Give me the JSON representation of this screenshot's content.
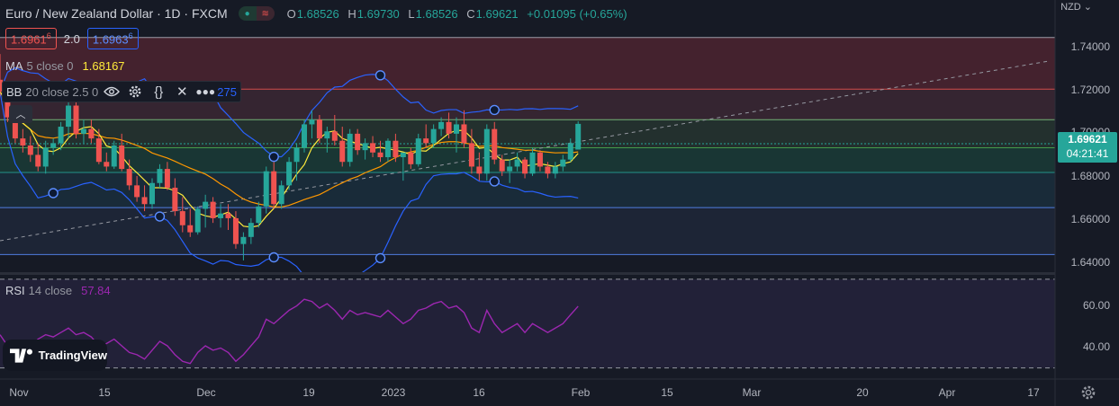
{
  "header": {
    "title": "Euro / New Zealand Dollar · 1D · FXCM",
    "ohlc": [
      {
        "k": "O",
        "v": "1.68526"
      },
      {
        "k": "H",
        "v": "1.69730"
      },
      {
        "k": "L",
        "v": "1.68526"
      },
      {
        "k": "C",
        "v": "1.69621"
      }
    ],
    "change": "+0.01095 (+0.65%)"
  },
  "quote": {
    "bid_main": "1.6961",
    "bid_sup": "6",
    "spread": "2.0",
    "ask_main": "1.6963",
    "ask_sup": "6"
  },
  "ma": {
    "name": "MA",
    "params": "5 close 0",
    "value": "1.68167",
    "color": "#ffeb3b"
  },
  "bb": {
    "name": "BB",
    "params": "20 close 2.5 0",
    "value_tail": "275"
  },
  "rsi": {
    "name": "RSI",
    "params": "14 close",
    "value": "57.84"
  },
  "price_axis": {
    "currency": "NZD",
    "labels": [
      "1.74000",
      "1.72000",
      "1.70000",
      "1.68000",
      "1.66000",
      "1.64000"
    ],
    "last_price": "1.69621",
    "countdown": "04:21:41"
  },
  "rsi_axis": {
    "labels": [
      "60.00",
      "40.00"
    ]
  },
  "time_axis": [
    "Nov",
    "15",
    "Dec",
    "19",
    "2023",
    "16",
    "Feb",
    "15",
    "Mar",
    "20",
    "Apr",
    "17"
  ],
  "branding": "TradingView",
  "colors": {
    "up": "#26a69a",
    "down": "#ef5350",
    "ma": "#ffeb3b",
    "bb": "#2962ff",
    "ema": "#ff9800",
    "rsi": "#9c27b0"
  },
  "chart_data": {
    "type": "candlestick",
    "symbol": "EURNZD",
    "interval": "1D",
    "ylim": [
      1.633,
      1.749
    ],
    "fib_levels": [
      1.733,
      1.711,
      1.698,
      1.686,
      1.6755,
      1.6605,
      1.6405
    ],
    "candles": [
      {
        "o": 1.715,
        "h": 1.726,
        "l": 1.708,
        "c": 1.71
      },
      {
        "o": 1.71,
        "h": 1.714,
        "l": 1.697,
        "c": 1.699
      },
      {
        "o": 1.699,
        "h": 1.703,
        "l": 1.688,
        "c": 1.69
      },
      {
        "o": 1.69,
        "h": 1.694,
        "l": 1.684,
        "c": 1.687
      },
      {
        "o": 1.687,
        "h": 1.691,
        "l": 1.68,
        "c": 1.683
      },
      {
        "o": 1.683,
        "h": 1.688,
        "l": 1.676,
        "c": 1.678
      },
      {
        "o": 1.678,
        "h": 1.689,
        "l": 1.675,
        "c": 1.686
      },
      {
        "o": 1.686,
        "h": 1.69,
        "l": 1.683,
        "c": 1.688
      },
      {
        "o": 1.688,
        "h": 1.697,
        "l": 1.685,
        "c": 1.695
      },
      {
        "o": 1.695,
        "h": 1.706,
        "l": 1.69,
        "c": 1.704
      },
      {
        "o": 1.704,
        "h": 1.708,
        "l": 1.69,
        "c": 1.692
      },
      {
        "o": 1.692,
        "h": 1.698,
        "l": 1.688,
        "c": 1.694
      },
      {
        "o": 1.694,
        "h": 1.698,
        "l": 1.688,
        "c": 1.69
      },
      {
        "o": 1.69,
        "h": 1.694,
        "l": 1.679,
        "c": 1.68
      },
      {
        "o": 1.68,
        "h": 1.684,
        "l": 1.676,
        "c": 1.678
      },
      {
        "o": 1.678,
        "h": 1.689,
        "l": 1.677,
        "c": 1.687
      },
      {
        "o": 1.687,
        "h": 1.692,
        "l": 1.676,
        "c": 1.677
      },
      {
        "o": 1.677,
        "h": 1.681,
        "l": 1.668,
        "c": 1.67
      },
      {
        "o": 1.67,
        "h": 1.674,
        "l": 1.663,
        "c": 1.665
      },
      {
        "o": 1.665,
        "h": 1.67,
        "l": 1.659,
        "c": 1.662
      },
      {
        "o": 1.662,
        "h": 1.673,
        "l": 1.66,
        "c": 1.671
      },
      {
        "o": 1.671,
        "h": 1.679,
        "l": 1.669,
        "c": 1.677
      },
      {
        "o": 1.677,
        "h": 1.68,
        "l": 1.668,
        "c": 1.669
      },
      {
        "o": 1.669,
        "h": 1.673,
        "l": 1.657,
        "c": 1.659
      },
      {
        "o": 1.659,
        "h": 1.665,
        "l": 1.65,
        "c": 1.653
      },
      {
        "o": 1.653,
        "h": 1.66,
        "l": 1.648,
        "c": 1.65
      },
      {
        "o": 1.65,
        "h": 1.661,
        "l": 1.649,
        "c": 1.66
      },
      {
        "o": 1.66,
        "h": 1.666,
        "l": 1.652,
        "c": 1.663
      },
      {
        "o": 1.663,
        "h": 1.665,
        "l": 1.654,
        "c": 1.656
      },
      {
        "o": 1.656,
        "h": 1.662,
        "l": 1.652,
        "c": 1.658
      },
      {
        "o": 1.658,
        "h": 1.662,
        "l": 1.651,
        "c": 1.656
      },
      {
        "o": 1.656,
        "h": 1.659,
        "l": 1.643,
        "c": 1.645
      },
      {
        "o": 1.645,
        "h": 1.65,
        "l": 1.638,
        "c": 1.648
      },
      {
        "o": 1.648,
        "h": 1.656,
        "l": 1.645,
        "c": 1.654
      },
      {
        "o": 1.654,
        "h": 1.663,
        "l": 1.652,
        "c": 1.661
      },
      {
        "o": 1.661,
        "h": 1.678,
        "l": 1.658,
        "c": 1.676
      },
      {
        "o": 1.676,
        "h": 1.68,
        "l": 1.66,
        "c": 1.662
      },
      {
        "o": 1.662,
        "h": 1.672,
        "l": 1.66,
        "c": 1.67
      },
      {
        "o": 1.67,
        "h": 1.682,
        "l": 1.668,
        "c": 1.68
      },
      {
        "o": 1.68,
        "h": 1.688,
        "l": 1.672,
        "c": 1.686
      },
      {
        "o": 1.686,
        "h": 1.698,
        "l": 1.684,
        "c": 1.696
      },
      {
        "o": 1.696,
        "h": 1.702,
        "l": 1.69,
        "c": 1.698
      },
      {
        "o": 1.698,
        "h": 1.7,
        "l": 1.688,
        "c": 1.69
      },
      {
        "o": 1.69,
        "h": 1.695,
        "l": 1.684,
        "c": 1.693
      },
      {
        "o": 1.693,
        "h": 1.7,
        "l": 1.687,
        "c": 1.689
      },
      {
        "o": 1.689,
        "h": 1.695,
        "l": 1.678,
        "c": 1.68
      },
      {
        "o": 1.68,
        "h": 1.694,
        "l": 1.678,
        "c": 1.692
      },
      {
        "o": 1.692,
        "h": 1.694,
        "l": 1.683,
        "c": 1.685
      },
      {
        "o": 1.685,
        "h": 1.69,
        "l": 1.681,
        "c": 1.688
      },
      {
        "o": 1.688,
        "h": 1.691,
        "l": 1.682,
        "c": 1.684
      },
      {
        "o": 1.684,
        "h": 1.689,
        "l": 1.68,
        "c": 1.682
      },
      {
        "o": 1.682,
        "h": 1.69,
        "l": 1.68,
        "c": 1.689
      },
      {
        "o": 1.689,
        "h": 1.692,
        "l": 1.68,
        "c": 1.682
      },
      {
        "o": 1.682,
        "h": 1.684,
        "l": 1.672,
        "c": 1.684
      },
      {
        "o": 1.684,
        "h": 1.686,
        "l": 1.677,
        "c": 1.679
      },
      {
        "o": 1.679,
        "h": 1.692,
        "l": 1.678,
        "c": 1.69
      },
      {
        "o": 1.69,
        "h": 1.696,
        "l": 1.686,
        "c": 1.688
      },
      {
        "o": 1.688,
        "h": 1.696,
        "l": 1.686,
        "c": 1.694
      },
      {
        "o": 1.694,
        "h": 1.699,
        "l": 1.691,
        "c": 1.697
      },
      {
        "o": 1.697,
        "h": 1.701,
        "l": 1.69,
        "c": 1.692
      },
      {
        "o": 1.692,
        "h": 1.699,
        "l": 1.684,
        "c": 1.696
      },
      {
        "o": 1.696,
        "h": 1.702,
        "l": 1.686,
        "c": 1.688
      },
      {
        "o": 1.688,
        "h": 1.694,
        "l": 1.675,
        "c": 1.678
      },
      {
        "o": 1.678,
        "h": 1.684,
        "l": 1.672,
        "c": 1.675
      },
      {
        "o": 1.675,
        "h": 1.696,
        "l": 1.672,
        "c": 1.694
      },
      {
        "o": 1.694,
        "h": 1.697,
        "l": 1.679,
        "c": 1.681
      },
      {
        "o": 1.681,
        "h": 1.683,
        "l": 1.674,
        "c": 1.676
      },
      {
        "o": 1.676,
        "h": 1.681,
        "l": 1.671,
        "c": 1.678
      },
      {
        "o": 1.678,
        "h": 1.684,
        "l": 1.676,
        "c": 1.681
      },
      {
        "o": 1.681,
        "h": 1.682,
        "l": 1.673,
        "c": 1.675
      },
      {
        "o": 1.675,
        "h": 1.686,
        "l": 1.674,
        "c": 1.684
      },
      {
        "o": 1.684,
        "h": 1.685,
        "l": 1.676,
        "c": 1.678
      },
      {
        "o": 1.678,
        "h": 1.68,
        "l": 1.673,
        "c": 1.675
      },
      {
        "o": 1.675,
        "h": 1.68,
        "l": 1.673,
        "c": 1.678
      },
      {
        "o": 1.678,
        "h": 1.683,
        "l": 1.676,
        "c": 1.681
      },
      {
        "o": 1.681,
        "h": 1.69,
        "l": 1.68,
        "c": 1.688
      },
      {
        "o": 1.68526,
        "h": 1.6973,
        "l": 1.68526,
        "c": 1.69621
      }
    ],
    "rsi_ylim": [
      25,
      72
    ],
    "rsi_levels": [
      70,
      30
    ],
    "rsi_values": [
      45,
      40,
      38,
      36,
      40,
      43,
      45,
      44,
      46,
      48,
      45,
      46,
      44,
      40,
      41,
      43,
      40,
      37,
      36,
      34,
      38,
      42,
      40,
      36,
      33,
      32,
      37,
      40,
      38,
      39,
      37,
      33,
      36,
      40,
      44,
      52,
      50,
      53,
      56,
      58,
      61,
      60,
      57,
      59,
      56,
      52,
      56,
      54,
      55,
      54,
      53,
      56,
      53,
      50,
      52,
      56,
      57,
      59,
      60,
      57,
      58,
      55,
      48,
      46,
      56,
      50,
      46,
      48,
      50,
      46,
      50,
      48,
      46,
      48,
      50,
      54,
      57.84
    ]
  }
}
